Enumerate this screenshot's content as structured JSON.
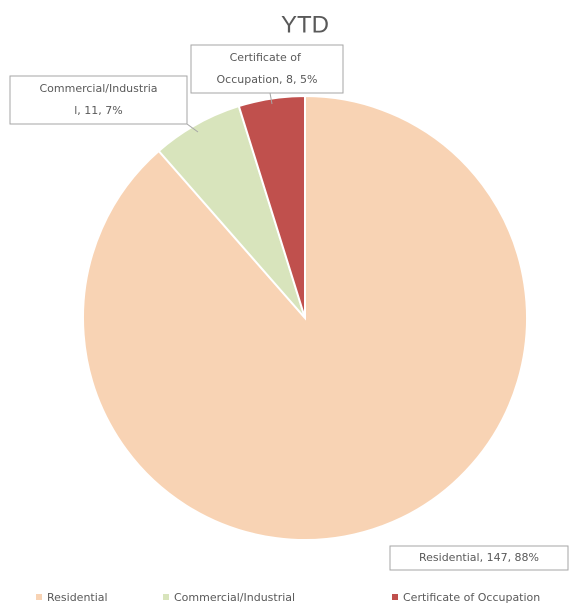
{
  "chart_data": {
    "type": "pie",
    "title": "YTD",
    "categories": [
      "Residential",
      "Commercial/Industrial",
      "Certificate of Occupation"
    ],
    "values": [
      147,
      11,
      8
    ],
    "value_labels": [
      "Residential, 147, 88%",
      "Commercial/Industrial, 11, 7%",
      "Certificate of Occupation, 8, 5%"
    ],
    "colors": [
      "#f8d3b4",
      "#d8e4bc",
      "#c0504d"
    ],
    "legend": "bottom"
  }
}
